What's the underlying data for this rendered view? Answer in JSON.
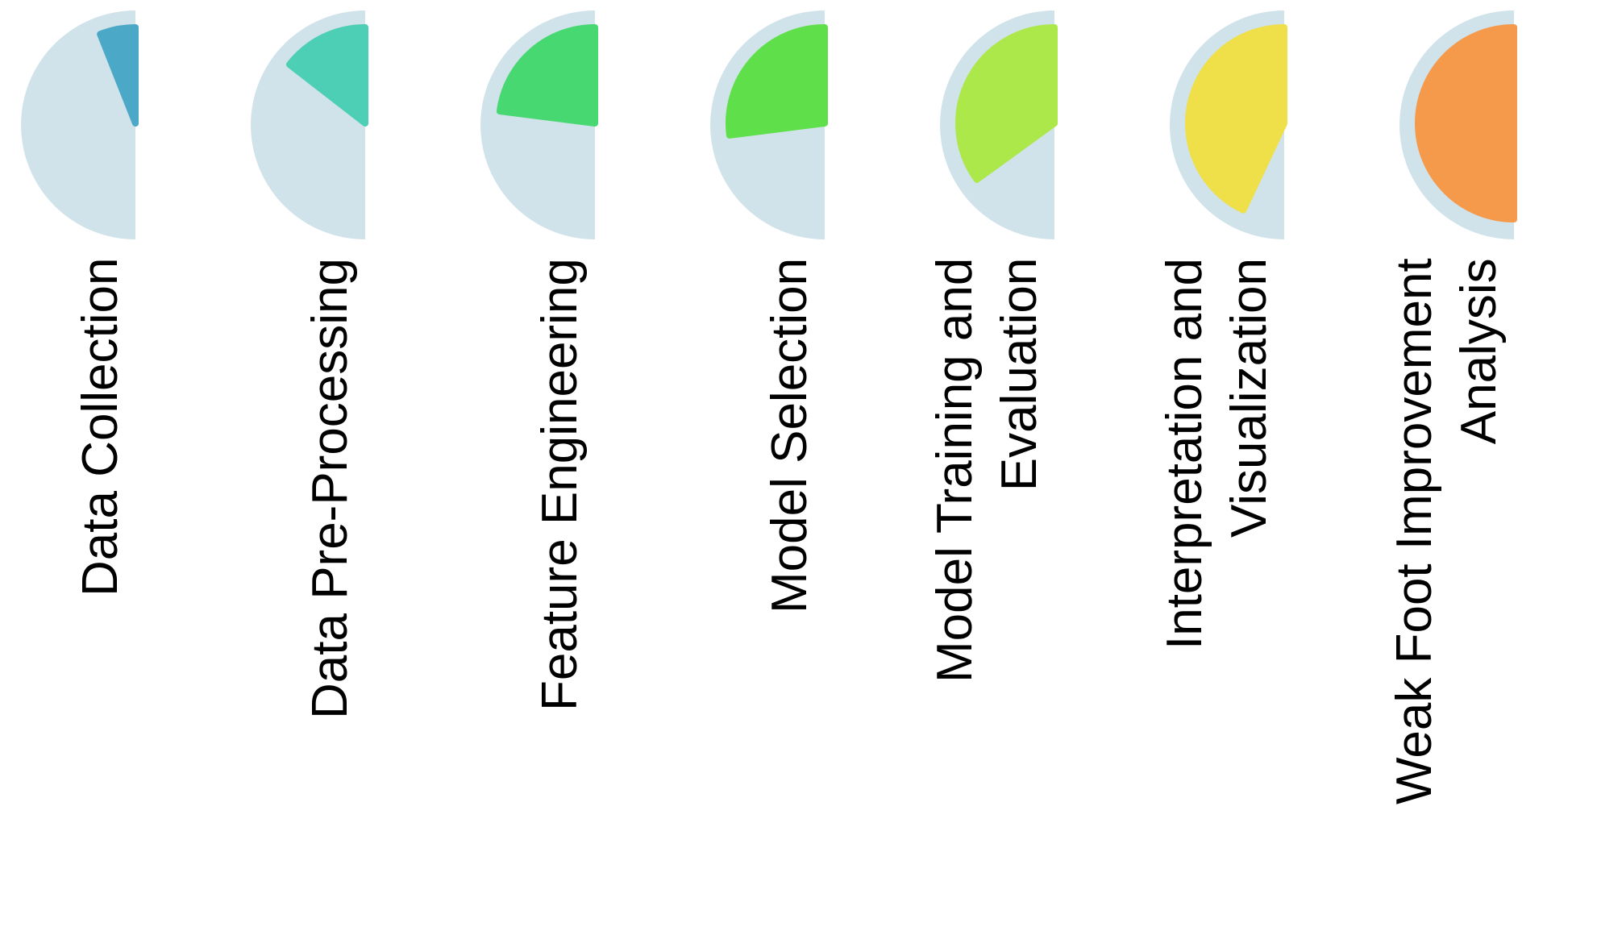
{
  "colors": {
    "background_circle": "#d0e2ea"
  },
  "stages": [
    {
      "lines": [
        "Data Collection"
      ],
      "progress": 0.12,
      "color": "#4ba8c6",
      "dir": "column"
    },
    {
      "lines": [
        "Data Pre-Processing"
      ],
      "progress": 0.29,
      "color": "#4ccfb4",
      "dir": "column"
    },
    {
      "lines": [
        "Feature Engineering"
      ],
      "progress": 0.46,
      "color": "#48d872",
      "dir": "column"
    },
    {
      "lines": [
        "Model Selection"
      ],
      "progress": 0.54,
      "color": "#5fe04a",
      "dir": "column"
    },
    {
      "lines": [
        "Model Training and",
        "Evaluation"
      ],
      "progress": 0.7,
      "color": "#ade84a",
      "dir": "column"
    },
    {
      "lines": [
        "Interpretation and",
        "Visualization"
      ],
      "progress": 0.86,
      "color": "#efdf48",
      "dir": "column"
    },
    {
      "lines": [
        "Weak Foot Improvement",
        "Analysis"
      ],
      "progress": 1.0,
      "color": "#f59a4a",
      "dir": "column"
    }
  ]
}
